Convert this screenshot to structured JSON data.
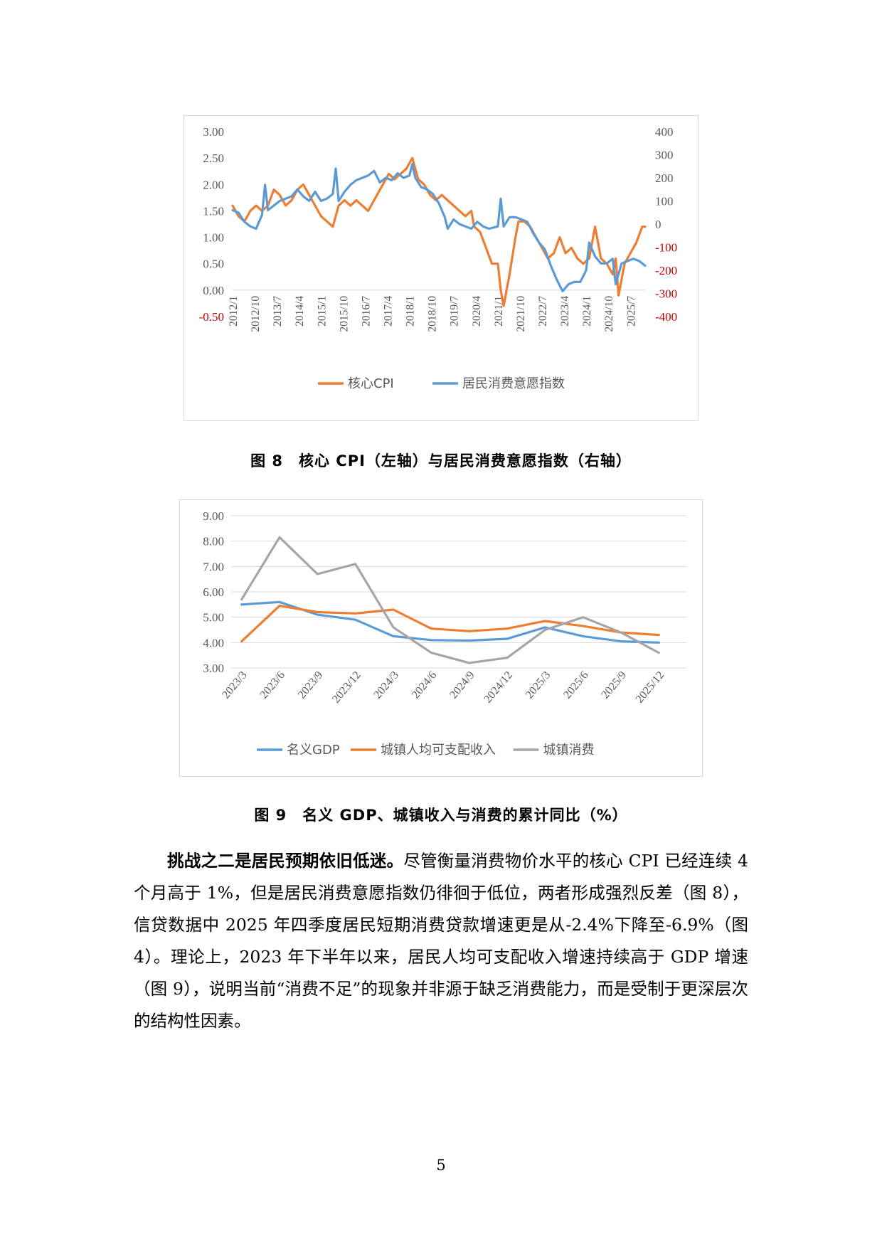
{
  "figures": [
    {
      "caption": "图 8　核心 CPI（左轴）与居民消费意愿指数（右轴）"
    },
    {
      "caption": "图 9　名义 GDP、城镇收入与消费的累计同比（%）"
    }
  ],
  "chart_data": [
    {
      "type": "line",
      "title": "",
      "x_tick_labels": [
        "2012/1",
        "2012/10",
        "2013/7",
        "2014/4",
        "2015/1",
        "2015/10",
        "2016/7",
        "2017/4",
        "2018/1",
        "2018/10",
        "2019/7",
        "2020/4",
        "2021/1",
        "2021/10",
        "2022/7",
        "2023/4",
        "2024/1",
        "2024/10",
        "2025/7"
      ],
      "y_left": {
        "ticks": [
          "3.00",
          "2.50",
          "2.00",
          "1.50",
          "1.00",
          "0.50",
          "0.00",
          "-0.50"
        ],
        "range": [
          -0.5,
          3.0
        ],
        "negative_color": "#c00000"
      },
      "y_right": {
        "ticks": [
          "400",
          "300",
          "200",
          "100",
          "0",
          "-100",
          "-200",
          "-300",
          "-400"
        ],
        "range": [
          -400,
          400
        ],
        "negative_color": "#c00000"
      },
      "grid": false,
      "legend": "bottom",
      "series": [
        {
          "name": "核心CPI",
          "color": "#ed7d31",
          "axis": "left",
          "points": [
            [
              2012.0,
              1.6
            ],
            [
              2012.2,
              1.4
            ],
            [
              2012.4,
              1.3
            ],
            [
              2012.6,
              1.5
            ],
            [
              2012.8,
              1.6
            ],
            [
              2013.0,
              1.5
            ],
            [
              2013.2,
              1.6
            ],
            [
              2013.4,
              1.9
            ],
            [
              2013.6,
              1.8
            ],
            [
              2013.8,
              1.6
            ],
            [
              2014.0,
              1.7
            ],
            [
              2014.2,
              1.9
            ],
            [
              2014.4,
              2.0
            ],
            [
              2014.6,
              1.8
            ],
            [
              2014.8,
              1.6
            ],
            [
              2015.0,
              1.4
            ],
            [
              2015.2,
              1.3
            ],
            [
              2015.4,
              1.2
            ],
            [
              2015.6,
              1.6
            ],
            [
              2015.8,
              1.7
            ],
            [
              2016.0,
              1.6
            ],
            [
              2016.2,
              1.7
            ],
            [
              2016.4,
              1.6
            ],
            [
              2016.6,
              1.5
            ],
            [
              2016.8,
              1.7
            ],
            [
              2016.9,
              1.8
            ],
            [
              2017.1,
              2.0
            ],
            [
              2017.3,
              2.2
            ],
            [
              2017.5,
              2.1
            ],
            [
              2017.7,
              2.2
            ],
            [
              2017.9,
              2.3
            ],
            [
              2018.1,
              2.5
            ],
            [
              2018.3,
              2.1
            ],
            [
              2018.5,
              2.0
            ],
            [
              2018.7,
              1.8
            ],
            [
              2018.9,
              1.7
            ],
            [
              2019.1,
              1.8
            ],
            [
              2019.3,
              1.7
            ],
            [
              2019.5,
              1.6
            ],
            [
              2019.7,
              1.5
            ],
            [
              2019.9,
              1.4
            ],
            [
              2020.1,
              1.5
            ],
            [
              2020.2,
              1.2
            ],
            [
              2020.4,
              1.1
            ],
            [
              2020.6,
              0.8
            ],
            [
              2020.8,
              0.5
            ],
            [
              2021.0,
              0.5
            ],
            [
              2021.1,
              0.0
            ],
            [
              2021.2,
              -0.3
            ],
            [
              2021.4,
              0.3
            ],
            [
              2021.6,
              1.0
            ],
            [
              2021.7,
              1.3
            ],
            [
              2021.9,
              1.3
            ],
            [
              2022.1,
              1.2
            ],
            [
              2022.3,
              1.0
            ],
            [
              2022.5,
              0.8
            ],
            [
              2022.7,
              0.6
            ],
            [
              2022.9,
              0.7
            ],
            [
              2023.1,
              1.0
            ],
            [
              2023.3,
              0.7
            ],
            [
              2023.5,
              0.8
            ],
            [
              2023.7,
              0.6
            ],
            [
              2023.9,
              0.5
            ],
            [
              2024.1,
              0.6
            ],
            [
              2024.3,
              1.2
            ],
            [
              2024.5,
              0.6
            ],
            [
              2024.7,
              0.5
            ],
            [
              2024.9,
              0.3
            ],
            [
              2025.0,
              0.6
            ],
            [
              2025.1,
              -0.1
            ],
            [
              2025.3,
              0.5
            ],
            [
              2025.5,
              0.7
            ],
            [
              2025.7,
              0.9
            ],
            [
              2025.9,
              1.2
            ],
            [
              2026.0,
              1.2
            ]
          ]
        },
        {
          "name": "居民消费意愿指数",
          "color": "#5b9bd5",
          "axis": "right",
          "points": [
            [
              2012.0,
              60
            ],
            [
              2012.2,
              50
            ],
            [
              2012.4,
              10
            ],
            [
              2012.6,
              -10
            ],
            [
              2012.8,
              -20
            ],
            [
              2013.0,
              40
            ],
            [
              2013.1,
              170
            ],
            [
              2013.2,
              60
            ],
            [
              2013.4,
              80
            ],
            [
              2013.6,
              100
            ],
            [
              2013.8,
              110
            ],
            [
              2014.0,
              120
            ],
            [
              2014.2,
              150
            ],
            [
              2014.4,
              120
            ],
            [
              2014.6,
              100
            ],
            [
              2014.8,
              140
            ],
            [
              2015.0,
              100
            ],
            [
              2015.2,
              110
            ],
            [
              2015.4,
              130
            ],
            [
              2015.5,
              240
            ],
            [
              2015.6,
              100
            ],
            [
              2015.8,
              140
            ],
            [
              2016.0,
              170
            ],
            [
              2016.2,
              190
            ],
            [
              2016.4,
              200
            ],
            [
              2016.6,
              210
            ],
            [
              2016.8,
              230
            ],
            [
              2017.0,
              180
            ],
            [
              2017.2,
              200
            ],
            [
              2017.4,
              190
            ],
            [
              2017.6,
              220
            ],
            [
              2017.8,
              200
            ],
            [
              2018.0,
              210
            ],
            [
              2018.1,
              260
            ],
            [
              2018.2,
              200
            ],
            [
              2018.4,
              160
            ],
            [
              2018.6,
              150
            ],
            [
              2018.8,
              130
            ],
            [
              2019.0,
              90
            ],
            [
              2019.2,
              30
            ],
            [
              2019.3,
              -20
            ],
            [
              2019.5,
              20
            ],
            [
              2019.7,
              0
            ],
            [
              2019.9,
              -10
            ],
            [
              2020.1,
              -20
            ],
            [
              2020.3,
              10
            ],
            [
              2020.5,
              -10
            ],
            [
              2020.7,
              -20
            ],
            [
              2021.0,
              -10
            ],
            [
              2021.1,
              110
            ],
            [
              2021.2,
              -10
            ],
            [
              2021.4,
              30
            ],
            [
              2021.6,
              30
            ],
            [
              2021.8,
              20
            ],
            [
              2022.0,
              10
            ],
            [
              2022.2,
              -40
            ],
            [
              2022.4,
              -80
            ],
            [
              2022.6,
              -110
            ],
            [
              2022.8,
              -180
            ],
            [
              2023.0,
              -240
            ],
            [
              2023.2,
              -290
            ],
            [
              2023.4,
              -260
            ],
            [
              2023.6,
              -250
            ],
            [
              2023.8,
              -250
            ],
            [
              2024.0,
              -200
            ],
            [
              2024.1,
              -80
            ],
            [
              2024.3,
              -140
            ],
            [
              2024.5,
              -170
            ],
            [
              2024.7,
              -170
            ],
            [
              2024.9,
              -150
            ],
            [
              2025.0,
              -260
            ],
            [
              2025.2,
              -170
            ],
            [
              2025.4,
              -160
            ],
            [
              2025.6,
              -150
            ],
            [
              2025.8,
              -160
            ],
            [
              2026.0,
              -180
            ]
          ]
        }
      ]
    },
    {
      "type": "line",
      "title": "",
      "categories": [
        "2023/3",
        "2023/6",
        "2023/9",
        "2023/12",
        "2024/3",
        "2024/6",
        "2024/9",
        "2024/12",
        "2025/3",
        "2025/6",
        "2025/9",
        "2025/12"
      ],
      "y_ticks": [
        "9.00",
        "8.00",
        "7.00",
        "6.00",
        "5.00",
        "4.00",
        "3.00"
      ],
      "ylim": [
        3,
        9
      ],
      "grid": true,
      "legend": "bottom",
      "series": [
        {
          "name": "名义GDP",
          "color": "#5b9bd5",
          "values": [
            5.5,
            5.6,
            5.1,
            4.9,
            4.25,
            4.1,
            4.08,
            4.15,
            4.6,
            4.25,
            4.05,
            4.0
          ]
        },
        {
          "name": "城镇人均可支配收入",
          "color": "#ed7d31",
          "values": [
            4.05,
            5.45,
            5.2,
            5.15,
            5.3,
            4.55,
            4.45,
            4.55,
            4.85,
            4.65,
            4.4,
            4.3
          ]
        },
        {
          "name": "城镇消费",
          "color": "#a5a5a5",
          "values": [
            5.7,
            8.15,
            6.7,
            7.1,
            4.6,
            3.6,
            3.2,
            3.4,
            4.5,
            5.0,
            4.4,
            3.6
          ]
        }
      ]
    }
  ],
  "paragraph": {
    "lead": "挑战之二是居民预期依旧低迷。",
    "body": "尽管衡量消费物价水平的核心 CPI 已经连续 4 个月高于 1%，但是居民消费意愿指数仍徘徊于低位，两者形成强烈反差（图 8），信贷数据中 2025 年四季度居民短期消费贷款增速更是从-2.4%下降至-6.9%（图 4）。理论上，2023 年下半年以来，居民人均可支配收入增速持续高于 GDP 增速（图 9），说明当前“消费不足”的现象并非源于缺乏消费能力，而是受制于更深层次的结构性因素。"
  },
  "page_number": "5"
}
